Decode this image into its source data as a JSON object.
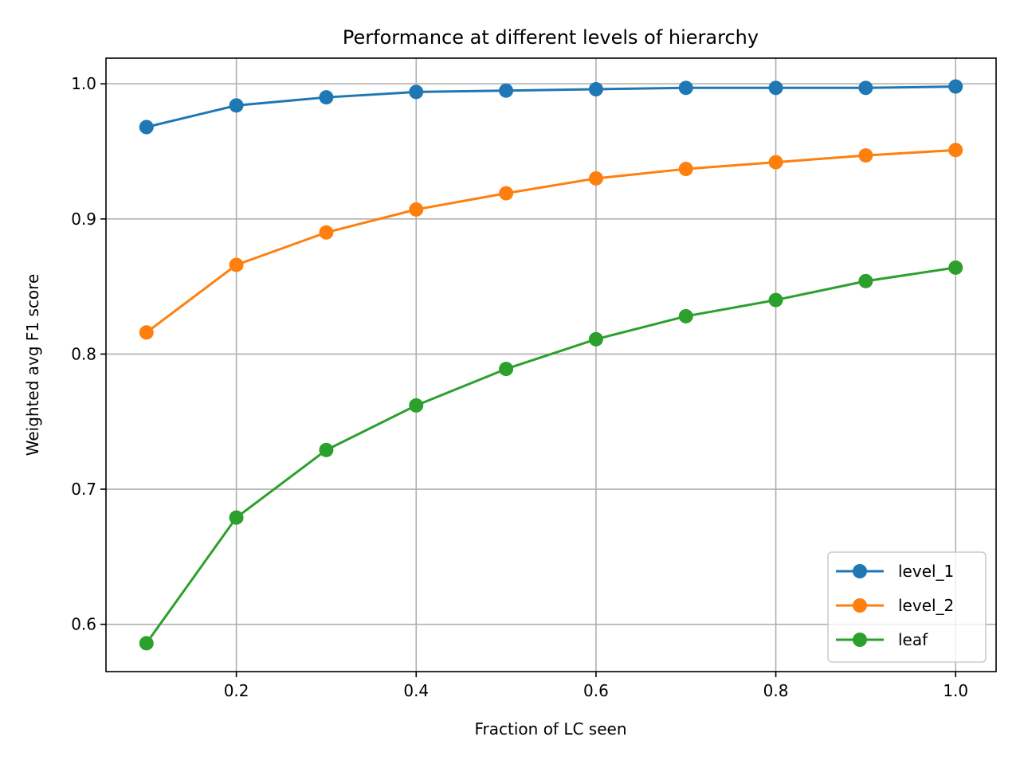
{
  "chart_data": {
    "type": "line",
    "title": "Performance at different levels of hierarchy",
    "xlabel": "Fraction of LC seen",
    "ylabel": "Weighted avg F1 score",
    "x": [
      0.1,
      0.2,
      0.3,
      0.4,
      0.5,
      0.6,
      0.7,
      0.8,
      0.9,
      1.0
    ],
    "xlim": [
      0.055,
      1.045
    ],
    "ylim": [
      0.565,
      1.019
    ],
    "xticks": [
      0.2,
      0.4,
      0.6,
      0.8,
      1.0
    ],
    "xtick_labels": [
      "0.2",
      "0.4",
      "0.6",
      "0.8",
      "1.0"
    ],
    "yticks": [
      0.6,
      0.7,
      0.8,
      0.9,
      1.0
    ],
    "ytick_labels": [
      "0.6",
      "0.7",
      "0.8",
      "0.9",
      "1.0"
    ],
    "grid": true,
    "legend_position": "lower-right",
    "series": [
      {
        "name": "level_1",
        "color": "#1f77b4",
        "values": [
          0.968,
          0.984,
          0.99,
          0.994,
          0.995,
          0.996,
          0.997,
          0.997,
          0.997,
          0.998
        ]
      },
      {
        "name": "level_2",
        "color": "#ff7f0e",
        "values": [
          0.816,
          0.866,
          0.89,
          0.907,
          0.919,
          0.93,
          0.937,
          0.942,
          0.947,
          0.951
        ]
      },
      {
        "name": "leaf",
        "color": "#2ca02c",
        "values": [
          0.586,
          0.679,
          0.729,
          0.762,
          0.789,
          0.811,
          0.828,
          0.84,
          0.854,
          0.864
        ]
      }
    ]
  }
}
